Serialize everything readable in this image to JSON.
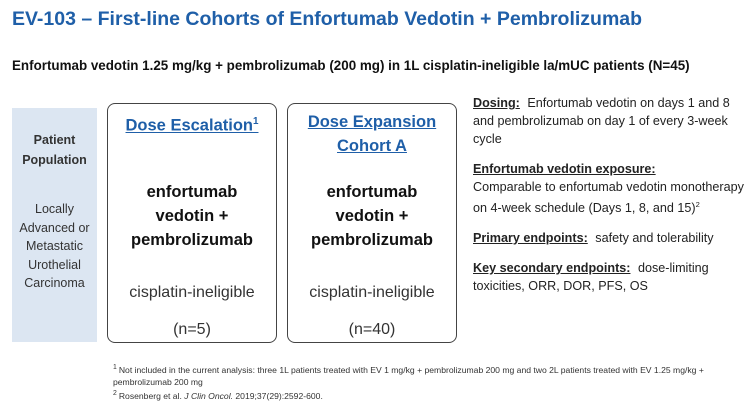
{
  "title": "EV-103 – First-line Cohorts of Enfortumab Vedotin + Pembrolizumab",
  "subtitle": "Enfortumab vedotin 1.25 mg/kg + pembrolizumab (200 mg) in 1L cisplatin-ineligible la/mUC patients (N=45)",
  "population": {
    "heading": "Patient Population",
    "text": "Locally Advanced or Metastatic Urothelial Carcinoma"
  },
  "cohorts": [
    {
      "heading": "Dose Escalation",
      "superscript": "1",
      "drug": "enfortumab vedotin + pembrolizumab",
      "eligibility": "cisplatin-ineligible",
      "n": "(n=5)"
    },
    {
      "heading": "Dose Expansion Cohort A",
      "drug": "enfortumab vedotin + pembrolizumab",
      "eligibility": "cisplatin-ineligible",
      "n": "(n=40)"
    }
  ],
  "details": [
    {
      "label": "Dosing:",
      "text": "Enfortumab vedotin on days 1 and 8 and pembrolizumab on day 1 of every 3-week cycle"
    },
    {
      "label": "Enfortumab vedotin exposure:",
      "text": "Comparable to enfortumab vedotin monotherapy on 4-week schedule (Days 1, 8, and 15)",
      "superscript": "2"
    },
    {
      "label": "Primary endpoints:",
      "text": "safety and tolerability"
    },
    {
      "label": "Key secondary endpoints:",
      "text": "dose-limiting toxicities, ORR, DOR, PFS, OS"
    }
  ],
  "footnotes": [
    {
      "marker": "1",
      "text": "Not included in the current analysis: three 1L patients treated with EV 1 mg/kg + pembrolizumab 200 mg and two 2L patients treated with EV 1.25 mg/kg + pembrolizumab 200 mg"
    },
    {
      "marker": "2",
      "author": "Rosenberg et al.",
      "journal": "J Clin Oncol.",
      "citation": "2019;37(29):2592-600."
    }
  ]
}
